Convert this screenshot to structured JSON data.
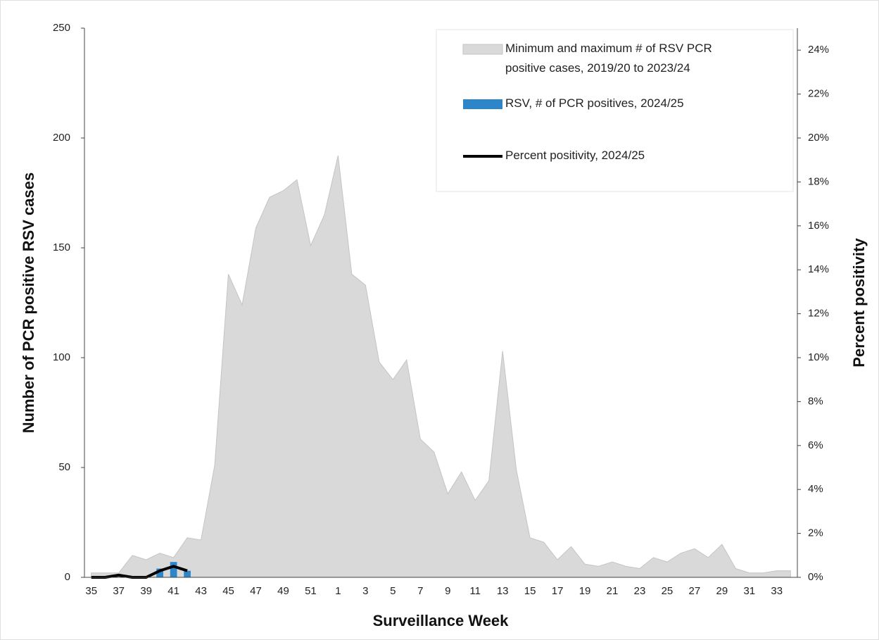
{
  "chart_data": {
    "type": "combo",
    "x_label": "Surveillance Week",
    "y_label": "Number of PCR positive RSV cases",
    "y2_label": "Percent positivity",
    "categories": [
      "35",
      null,
      "37",
      null,
      "39",
      null,
      "41",
      null,
      "43",
      null,
      "45",
      null,
      "47",
      null,
      "49",
      null,
      "51",
      null,
      "1",
      null,
      "3",
      null,
      "5",
      null,
      "7",
      null,
      "9",
      null,
      "11",
      null,
      "13",
      null,
      "15",
      null,
      "17",
      null,
      "19",
      null,
      "21",
      null,
      "23",
      null,
      "25",
      null,
      "27",
      null,
      "29",
      null,
      "31",
      null,
      "33",
      null
    ],
    "ylim": [
      0,
      250
    ],
    "yticks": [
      0,
      50,
      100,
      150,
      200,
      250
    ],
    "y2lim": [
      0,
      25
    ],
    "y2ticks": [
      {
        "value": 0,
        "label": "0%"
      },
      {
        "value": 2,
        "label": "2%"
      },
      {
        "value": 4,
        "label": "4%"
      },
      {
        "value": 6,
        "label": "6%"
      },
      {
        "value": 8,
        "label": "8%"
      },
      {
        "value": 10,
        "label": "10%"
      },
      {
        "value": 12,
        "label": "12%"
      },
      {
        "value": 14,
        "label": "14%"
      },
      {
        "value": 16,
        "label": "16%"
      },
      {
        "value": 18,
        "label": "18%"
      },
      {
        "value": 20,
        "label": "20%"
      },
      {
        "value": 22,
        "label": "22%"
      },
      {
        "value": 24,
        "label": "24%"
      }
    ],
    "legend": "top-right",
    "series": [
      {
        "name": "Minimum and maximum # of RSV PCR positive cases, 2019/20 to 2023/24",
        "type": "area",
        "color": "#d9d9d9",
        "values": [
          2,
          2,
          2,
          10,
          8,
          11,
          9,
          18,
          17,
          51,
          138,
          124,
          159,
          173,
          176,
          181,
          151,
          165,
          192,
          138,
          133,
          98,
          90,
          99,
          63,
          57,
          38,
          48,
          35,
          44,
          103,
          49,
          18,
          16,
          8,
          14,
          6,
          5,
          7,
          5,
          4,
          9,
          7,
          11,
          13,
          9,
          15,
          4,
          2,
          2,
          3,
          3
        ]
      },
      {
        "name": "RSV, # of PCR positives, 2024/25",
        "type": "bar",
        "color": "#2e86c8",
        "values": [
          0,
          0,
          0,
          0,
          0,
          4,
          7,
          3,
          null,
          null,
          null,
          null,
          null,
          null,
          null,
          null,
          null,
          null,
          null,
          null,
          null,
          null,
          null,
          null,
          null,
          null,
          null,
          null,
          null,
          null,
          null,
          null,
          null,
          null,
          null,
          null,
          null,
          null,
          null,
          null,
          null,
          null,
          null,
          null,
          null,
          null,
          null,
          null,
          null,
          null,
          null,
          null
        ]
      },
      {
        "name": "Percent positivity, 2024/25",
        "type": "line",
        "axis": "y2",
        "color": "#000000",
        "values": [
          0,
          0,
          0.1,
          0,
          0,
          0.3,
          0.5,
          0.3,
          null,
          null,
          null,
          null,
          null,
          null,
          null,
          null,
          null,
          null,
          null,
          null,
          null,
          null,
          null,
          null,
          null,
          null,
          null,
          null,
          null,
          null,
          null,
          null,
          null,
          null,
          null,
          null,
          null,
          null,
          null,
          null,
          null,
          null,
          null,
          null,
          null,
          null,
          null,
          null,
          null,
          null,
          null,
          null
        ]
      }
    ]
  }
}
